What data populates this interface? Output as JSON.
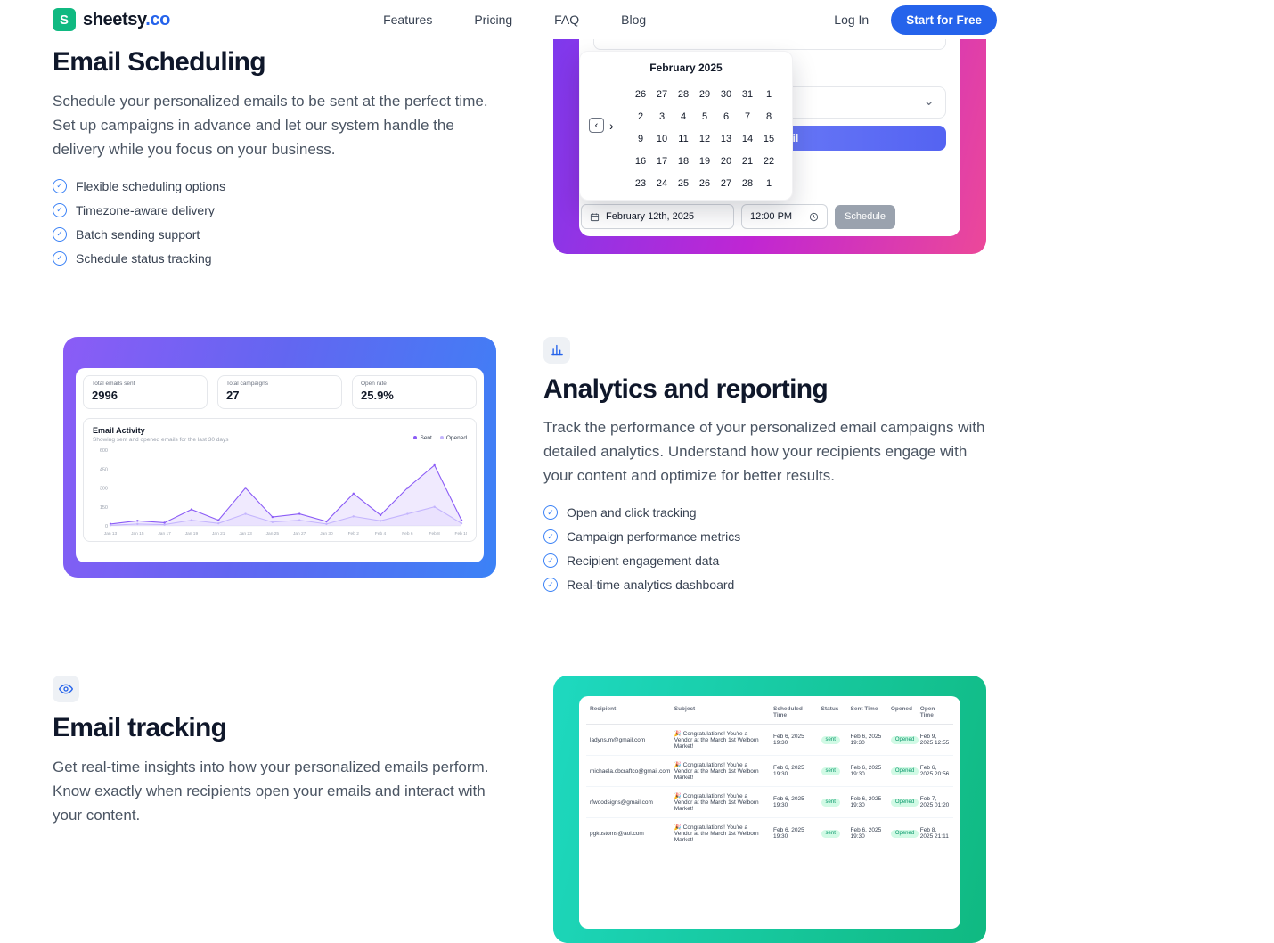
{
  "icons": {
    "logo_letter": "S",
    "check": "✓",
    "chevron_left": "‹",
    "chevron_right": "›",
    "chevron_down": "⌄"
  },
  "colors": {
    "accent_blue": "#2563eb",
    "logo_green": "#10b981",
    "check_icon_blue": "#3b82f6",
    "scheduling_gradient": [
      "#7c3aed",
      "#ec4899"
    ],
    "analytics_gradient": [
      "#8b5cf6",
      "#3b82f6"
    ],
    "tracking_gradient": [
      "#1ed9c0",
      "#10b981"
    ],
    "status_pill_bg": "#d1fae5",
    "status_pill_text": "#059669"
  },
  "header": {
    "logo_name": "sheetsy",
    "logo_tld": ".co",
    "nav": [
      "Features",
      "Pricing",
      "FAQ",
      "Blog"
    ],
    "login_label": "Log In",
    "cta_label": "Start for Free"
  },
  "scheduling": {
    "title": "Email Scheduling",
    "description": "Schedule your personalized emails to be sent at the perfect time. Set up campaigns in advance and let our system handle the delivery while you focus on your business.",
    "bullets": [
      "Flexible scheduling options",
      "Timezone-aware delivery",
      "Batch sending support",
      "Schedule status tracking"
    ],
    "mock": {
      "calendar_month": "February 2025",
      "calendar_weeks": [
        [
          26,
          27,
          28,
          29,
          30,
          31,
          1
        ],
        [
          2,
          3,
          4,
          5,
          6,
          7,
          8
        ],
        [
          9,
          10,
          11,
          12,
          13,
          14,
          15
        ],
        [
          16,
          17,
          18,
          19,
          20,
          21,
          22
        ],
        [
          23,
          24,
          25,
          26,
          27,
          28,
          1
        ]
      ],
      "date_value": "February 12th, 2025",
      "time_value": "12:00 PM",
      "schedule_label": "Schedule",
      "send_label": "Send Email"
    }
  },
  "analytics": {
    "title": "Analytics and reporting",
    "description": "Track the performance of your personalized email campaigns with detailed analytics. Understand how your recipients engage with your content and optimize for better results.",
    "bullets": [
      "Open and click tracking",
      "Campaign performance metrics",
      "Recipient engagement data",
      "Real-time analytics dashboard"
    ],
    "dashboard": {
      "stats": [
        {
          "label": "Total emails sent",
          "value": "2996"
        },
        {
          "label": "Total campaigns",
          "value": "27"
        },
        {
          "label": "Open rate",
          "value": "25.9%"
        }
      ],
      "chart_title": "Email Activity",
      "chart_subtitle": "Showing sent and opened emails for the last 30 days"
    }
  },
  "tracking": {
    "title": "Email tracking",
    "description": "Get real-time insights into how your personalized emails perform. Know exactly when recipients open your emails and interact with your content.",
    "table": {
      "headers": [
        "Recipient",
        "Subject",
        "Scheduled Time",
        "Status",
        "Sent Time",
        "Opened",
        "Open Time"
      ],
      "rows": [
        {
          "recipient": "ladyns.m@gmail.com",
          "subject": "🎉 Congratulations! You're a Vendor at the March 1st Welborn Market!",
          "scheduled": "Feb 6, 2025 19:30",
          "status": "sent",
          "sent_time": "Feb 6, 2025 19:30",
          "opened": "Opened",
          "open_time": "Feb 9, 2025 12:55"
        },
        {
          "recipient": "michaela.cbcraftco@gmail.com",
          "subject": "🎉 Congratulations! You're a Vendor at the March 1st Welborn Market!",
          "scheduled": "Feb 6, 2025 19:30",
          "status": "sent",
          "sent_time": "Feb 6, 2025 19:30",
          "opened": "Opened",
          "open_time": "Feb 6, 2025 20:56"
        },
        {
          "recipient": "rfwoodsigns@gmail.com",
          "subject": "🎉 Congratulations! You're a Vendor at the March 1st Welborn Market!",
          "scheduled": "Feb 6, 2025 19:30",
          "status": "sent",
          "sent_time": "Feb 6, 2025 19:30",
          "opened": "Opened",
          "open_time": "Feb 7, 2025 01:20"
        },
        {
          "recipient": "pgkustoms@aol.com",
          "subject": "🎉 Congratulations! You're a Vendor at the March 1st Welborn Market!",
          "scheduled": "Feb 6, 2025 19:30",
          "status": "sent",
          "sent_time": "Feb 6, 2025 19:30",
          "opened": "Opened",
          "open_time": "Feb 8, 2025 21:11"
        }
      ]
    }
  },
  "chart_data": {
    "type": "line",
    "title": "Email Activity",
    "categories": [
      "Jan 13",
      "Jan 15",
      "Jan 17",
      "Jan 19",
      "Jan 21",
      "Jan 23",
      "Jan 25",
      "Jan 27",
      "Jan 30",
      "Feb 2",
      "Feb 4",
      "Feb 6",
      "Feb 8",
      "Feb 10"
    ],
    "series": [
      {
        "name": "Sent",
        "color": "#8b5cf6",
        "values": [
          15,
          40,
          25,
          130,
          45,
          300,
          70,
          95,
          35,
          255,
          85,
          300,
          480,
          45
        ]
      },
      {
        "name": "Opened",
        "color": "#c4b5fd",
        "values": [
          5,
          15,
          10,
          45,
          20,
          95,
          30,
          45,
          15,
          75,
          40,
          95,
          150,
          20
        ]
      }
    ],
    "xlabel": "",
    "ylabel": "",
    "ylim": [
      0,
      600
    ],
    "yticks": [
      0,
      150,
      300,
      450,
      600
    ],
    "legend_position": "top-right",
    "grid": false
  }
}
